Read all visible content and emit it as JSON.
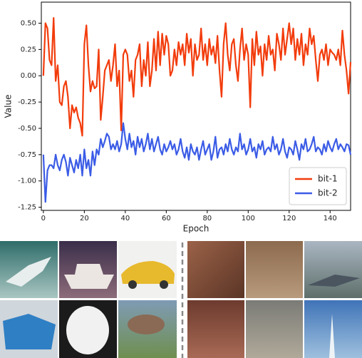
{
  "chart_data": {
    "type": "line",
    "x_label": "Epoch",
    "y_label": "Value",
    "x": [
      0,
      1,
      2,
      3,
      4,
      5,
      6,
      7,
      8,
      9,
      10,
      11,
      12,
      13,
      14,
      15,
      16,
      17,
      18,
      19,
      20,
      21,
      22,
      23,
      24,
      25,
      26,
      27,
      28,
      29,
      30,
      31,
      32,
      33,
      34,
      35,
      36,
      37,
      38,
      39,
      40,
      41,
      42,
      43,
      44,
      45,
      46,
      47,
      48,
      49,
      50,
      51,
      52,
      53,
      54,
      55,
      56,
      57,
      58,
      59,
      60,
      61,
      62,
      63,
      64,
      65,
      66,
      67,
      68,
      69,
      70,
      71,
      72,
      73,
      74,
      75,
      76,
      77,
      78,
      79,
      80,
      81,
      82,
      83,
      84,
      85,
      86,
      87,
      88,
      89,
      90,
      91,
      92,
      93,
      94,
      95,
      96,
      97,
      98,
      99,
      100,
      101,
      102,
      103,
      104,
      105,
      106,
      107,
      108,
      109,
      110,
      111,
      112,
      113,
      114,
      115,
      116,
      117,
      118,
      119,
      120,
      121,
      122,
      123,
      124,
      125,
      126,
      127,
      128,
      129,
      130,
      131,
      132,
      133,
      134,
      135,
      136,
      137,
      138,
      139,
      140,
      141,
      142,
      143,
      144,
      145,
      146,
      147,
      148,
      149,
      150
    ],
    "series": [
      {
        "name": "bit-1",
        "color": "#f23c0c",
        "values": [
          0.0,
          0.5,
          0.45,
          0.15,
          0.1,
          0.55,
          -0.05,
          0.1,
          -0.25,
          -0.28,
          -0.1,
          -0.05,
          -0.2,
          -0.5,
          -0.28,
          -0.35,
          -0.3,
          -0.4,
          -0.45,
          -0.57,
          0.3,
          0.48,
          0.1,
          -0.15,
          -0.05,
          -0.12,
          -0.1,
          0.25,
          -0.42,
          -0.2,
          0.05,
          0.1,
          0.15,
          -0.05,
          0.1,
          0.3,
          -0.1,
          0.05,
          -0.52,
          0.2,
          0.25,
          0.2,
          -0.05,
          0.05,
          -0.2,
          0.15,
          0.2,
          0.3,
          -0.1,
          0.15,
          0.0,
          0.32,
          -0.1,
          0.05,
          0.35,
          0.05,
          0.42,
          0.1,
          0.4,
          0.2,
          0.38,
          0.3,
          0.0,
          0.05,
          0.25,
          0.1,
          0.32,
          0.2,
          0.3,
          0.1,
          0.4,
          0.22,
          0.35,
          0.0,
          0.3,
          0.15,
          0.2,
          0.45,
          0.15,
          0.3,
          0.1,
          0.35,
          0.2,
          0.28,
          0.12,
          0.38,
          0.05,
          -0.2,
          0.3,
          0.5,
          0.2,
          0.05,
          0.3,
          0.35,
          0.1,
          -0.05,
          0.25,
          0.45,
          0.15,
          0.3,
          0.2,
          -0.3,
          0.35,
          0.1,
          0.42,
          0.2,
          0.28,
          0.0,
          0.3,
          0.15,
          0.38,
          0.2,
          0.25,
          0.05,
          0.4,
          0.3,
          0.15,
          0.45,
          0.2,
          0.35,
          0.5,
          0.3,
          0.45,
          0.15,
          0.35,
          0.2,
          0.4,
          0.1,
          0.3,
          0.2,
          0.45,
          0.3,
          0.38,
          0.15,
          -0.05,
          0.2,
          0.25,
          0.15,
          0.3,
          0.1,
          0.25,
          0.22,
          0.2,
          0.15,
          0.25,
          0.1,
          0.43,
          0.2,
          0.05,
          -0.17,
          0.13
        ]
      },
      {
        "name": "bit-2",
        "color": "#3b5ce6",
        "values": [
          -0.75,
          -1.2,
          -0.9,
          -0.85,
          -0.85,
          -0.88,
          -0.75,
          -0.85,
          -0.9,
          -0.8,
          -0.75,
          -0.82,
          -0.95,
          -0.78,
          -0.85,
          -0.92,
          -0.8,
          -0.88,
          -0.75,
          -0.95,
          -0.7,
          -0.88,
          -0.8,
          -0.95,
          -0.72,
          -0.85,
          -0.7,
          -0.75,
          -0.6,
          -0.68,
          -0.62,
          -0.55,
          -0.58,
          -0.7,
          -0.65,
          -0.7,
          -0.62,
          -0.72,
          -0.65,
          -0.45,
          -0.6,
          -0.7,
          -0.55,
          -0.68,
          -0.62,
          -0.75,
          -0.58,
          -0.68,
          -0.6,
          -0.72,
          -0.65,
          -0.55,
          -0.7,
          -0.6,
          -0.72,
          -0.65,
          -0.58,
          -0.7,
          -0.75,
          -0.65,
          -0.72,
          -0.68,
          -0.62,
          -0.7,
          -0.65,
          -0.75,
          -0.7,
          -0.6,
          -0.72,
          -0.78,
          -0.68,
          -0.8,
          -0.65,
          -0.72,
          -0.75,
          -0.68,
          -0.8,
          -0.7,
          -0.62,
          -0.75,
          -0.7,
          -0.65,
          -0.8,
          -0.72,
          -0.58,
          -0.78,
          -0.7,
          -0.68,
          -0.75,
          -0.65,
          -0.72,
          -0.6,
          -0.7,
          -0.75,
          -0.68,
          -0.72,
          -0.55,
          -0.7,
          -0.65,
          -0.75,
          -0.7,
          -0.6,
          -0.72,
          -0.68,
          -0.78,
          -0.65,
          -0.7,
          -0.62,
          -0.75,
          -0.7,
          -0.68,
          -0.72,
          -0.58,
          -0.7,
          -0.65,
          -0.75,
          -0.7,
          -0.6,
          -0.72,
          -0.78,
          -0.68,
          -0.7,
          -0.75,
          -0.62,
          -0.7,
          -0.8,
          -0.65,
          -0.7,
          -0.6,
          -0.72,
          -0.7,
          -0.65,
          -0.58,
          -0.72,
          -0.68,
          -0.7,
          -0.75,
          -0.65,
          -0.72,
          -0.62,
          -0.68,
          -0.72,
          -0.65,
          -0.6,
          -0.7,
          -0.65,
          -0.68,
          -0.72,
          -0.65,
          -0.66,
          -0.75
        ]
      }
    ],
    "xlim": [
      -1,
      150
    ],
    "ylim": [
      -1.28,
      0.7
    ],
    "xticks": [
      0,
      20,
      40,
      60,
      80,
      100,
      120,
      140
    ],
    "yticks": [
      -1.25,
      {
        "value": -1,
        "label": "-1.00"
      },
      -0.75,
      {
        "value": -0.5,
        "label": "-0.50"
      },
      -0.25,
      {
        "value": 0,
        "label": "0.00"
      },
      0.25,
      {
        "value": 0.5,
        "label": "0.50"
      }
    ],
    "legend": "lower right"
  }
}
